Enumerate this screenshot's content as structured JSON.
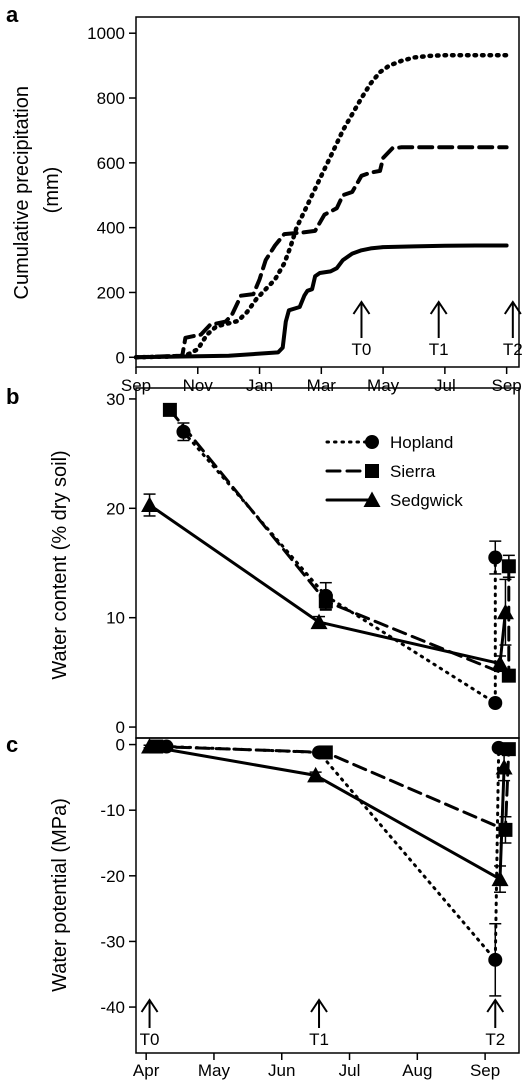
{
  "colors": {
    "ink": "#000000",
    "background": "#ffffff"
  },
  "chart_data": [
    {
      "panel": "a",
      "type": "line",
      "ylabel_lines": [
        "Cumulative precipitation",
        "(mm)"
      ],
      "xlabel": "",
      "x_ticks": [
        "Sep",
        "Nov",
        "Jan",
        "Mar",
        "May",
        "Jul",
        "Sep"
      ],
      "xlim_months": [
        0,
        12.4
      ],
      "ylim": [
        -30,
        1050
      ],
      "y_ticks": [
        0,
        200,
        400,
        600,
        800,
        1000
      ],
      "grid": false,
      "legend": "none",
      "series": [
        {
          "style": "dotted",
          "points": [
            [
              0,
              0
            ],
            [
              1,
              2
            ],
            [
              1.6,
              5
            ],
            [
              2,
              25
            ],
            [
              2.3,
              70
            ],
            [
              2.6,
              95
            ],
            [
              3,
              105
            ],
            [
              3.3,
              112
            ],
            [
              3.6,
              140
            ],
            [
              3.9,
              180
            ],
            [
              4.2,
              210
            ],
            [
              4.5,
              240
            ],
            [
              4.8,
              290
            ],
            [
              5.0,
              340
            ],
            [
              5.2,
              400
            ],
            [
              5.5,
              460
            ],
            [
              5.8,
              520
            ],
            [
              6.1,
              580
            ],
            [
              6.4,
              640
            ],
            [
              6.7,
              700
            ],
            [
              7.0,
              750
            ],
            [
              7.3,
              800
            ],
            [
              7.6,
              845
            ],
            [
              7.9,
              880
            ],
            [
              8.2,
              900
            ],
            [
              8.6,
              915
            ],
            [
              9,
              925
            ],
            [
              9.5,
              930
            ],
            [
              10,
              932
            ],
            [
              11,
              932
            ],
            [
              12,
              932
            ]
          ]
        },
        {
          "style": "dashed",
          "points": [
            [
              0,
              0
            ],
            [
              1.5,
              5
            ],
            [
              1.6,
              60
            ],
            [
              2.1,
              70
            ],
            [
              2.4,
              100
            ],
            [
              2.9,
              110
            ],
            [
              3.1,
              130
            ],
            [
              3.4,
              190
            ],
            [
              3.8,
              195
            ],
            [
              4.0,
              240
            ],
            [
              4.2,
              300
            ],
            [
              4.5,
              345
            ],
            [
              4.8,
              380
            ],
            [
              5.4,
              385
            ],
            [
              5.8,
              390
            ],
            [
              6.1,
              440
            ],
            [
              6.5,
              460
            ],
            [
              6.7,
              500
            ],
            [
              7.0,
              510
            ],
            [
              7.3,
              560
            ],
            [
              7.6,
              570
            ],
            [
              7.9,
              575
            ],
            [
              8.0,
              615
            ],
            [
              8.3,
              645
            ],
            [
              8.6,
              648
            ],
            [
              10,
              648
            ],
            [
              12,
              648
            ]
          ]
        },
        {
          "style": "solid",
          "points": [
            [
              0,
              0
            ],
            [
              3,
              5
            ],
            [
              4.6,
              15
            ],
            [
              4.75,
              30
            ],
            [
              4.85,
              110
            ],
            [
              4.95,
              145
            ],
            [
              5.3,
              155
            ],
            [
              5.45,
              190
            ],
            [
              5.55,
              205
            ],
            [
              5.7,
              210
            ],
            [
              5.8,
              250
            ],
            [
              5.95,
              260
            ],
            [
              6.3,
              265
            ],
            [
              6.5,
              275
            ],
            [
              6.7,
              300
            ],
            [
              7.0,
              320
            ],
            [
              7.3,
              330
            ],
            [
              7.6,
              336
            ],
            [
              8.0,
              340
            ],
            [
              9,
              342
            ],
            [
              10,
              344
            ],
            [
              11,
              345
            ],
            [
              12,
              345
            ]
          ]
        }
      ],
      "markers": [
        {
          "label": "T0",
          "x_month": 7.3
        },
        {
          "label": "T1",
          "x_month": 9.8
        },
        {
          "label": "T2",
          "x_month": 12.2
        }
      ]
    },
    {
      "panel": "b",
      "type": "line",
      "ylabel": "Water content (% dry soil)",
      "x_ticks": [
        "Apr",
        "May",
        "Jun",
        "Jul",
        "Aug",
        "Sep"
      ],
      "xlim_months": [
        -0.15,
        5.5
      ],
      "ylim": [
        -1,
        31
      ],
      "y_ticks": [
        0,
        10,
        20,
        30
      ],
      "grid": false,
      "legend": "top-right",
      "legend_entries": [
        "Hopland",
        "Sierra",
        "Sedgwick"
      ],
      "series": [
        {
          "name": "Hopland",
          "style": "dotted",
          "marker": "circle",
          "x": [
            0.55,
            2.65,
            5.15,
            5.15
          ],
          "y": [
            27,
            12,
            2.2,
            15.5
          ],
          "err": [
            0.8,
            1.2,
            0.3,
            1.5
          ]
        },
        {
          "name": "Sierra",
          "style": "dashed",
          "marker": "square",
          "x": [
            0.35,
            2.65,
            5.35,
            5.35
          ],
          "y": [
            29,
            11.5,
            4.7,
            14.7
          ],
          "err": [
            0.5,
            0.8,
            0.4,
            1.0
          ]
        },
        {
          "name": "Sedgwick",
          "style": "solid",
          "marker": "triangle",
          "x": [
            0.05,
            2.55,
            5.22,
            5.3
          ],
          "y": [
            20.3,
            9.6,
            5.8,
            10.5
          ],
          "err": [
            1.0,
            0.5,
            0.7,
            3.0
          ]
        }
      ]
    },
    {
      "panel": "c",
      "type": "line",
      "ylabel": "Water potential (MPa)",
      "x_ticks": [
        "Apr",
        "May",
        "Jun",
        "Jul",
        "Aug",
        "Sep"
      ],
      "xlim_months": [
        -0.15,
        5.5
      ],
      "ylim": [
        -47,
        1
      ],
      "y_ticks": [
        0,
        -10,
        -20,
        -30,
        -40
      ],
      "grid": false,
      "legend": "none",
      "series": [
        {
          "name": "Hopland",
          "style": "dotted",
          "marker": "circle",
          "x": [
            0.3,
            2.55,
            5.15,
            5.2
          ],
          "y": [
            -0.3,
            -1.2,
            -32.8,
            -0.5
          ],
          "err": [
            0.2,
            0.4,
            5.5,
            0.3
          ]
        },
        {
          "name": "Sierra",
          "style": "dashed",
          "marker": "square",
          "x": [
            0.15,
            2.65,
            5.3,
            5.35
          ],
          "y": [
            -0.3,
            -1.2,
            -13,
            -0.7
          ],
          "err": [
            0.2,
            0.5,
            2.0,
            0.4
          ]
        },
        {
          "name": "Sedgwick",
          "style": "solid",
          "marker": "triangle",
          "x": [
            0.05,
            2.5,
            5.22,
            5.28
          ],
          "y": [
            -0.3,
            -4.7,
            -20.5,
            -3.5
          ],
          "err": [
            0.2,
            0.5,
            2.0,
            2.0
          ]
        }
      ],
      "markers": [
        {
          "label": "T0",
          "x_month": 0.05
        },
        {
          "label": "T1",
          "x_month": 2.55
        },
        {
          "label": "T2",
          "x_month": 5.15
        }
      ]
    }
  ]
}
